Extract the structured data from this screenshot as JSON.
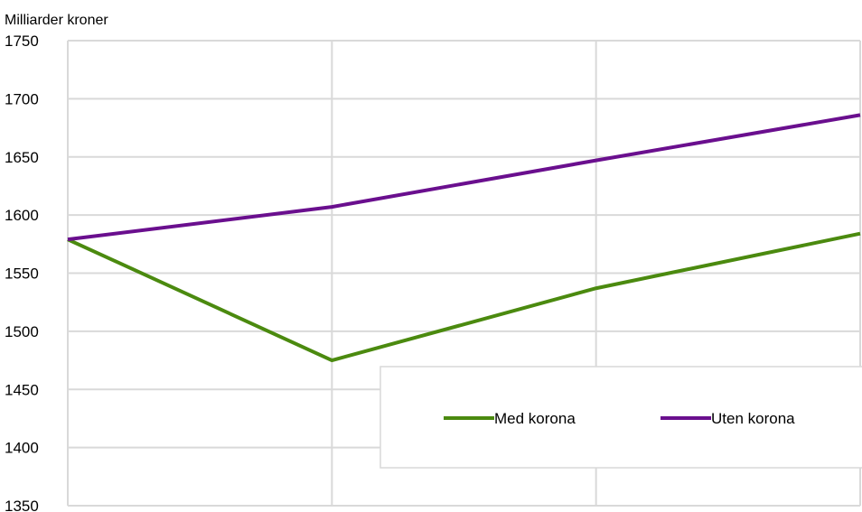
{
  "chart_data": {
    "type": "line",
    "ylabel": "Milliarder kroner",
    "ylim": [
      1350,
      1750
    ],
    "yticks": [
      1350,
      1400,
      1450,
      1500,
      1550,
      1600,
      1650,
      1700,
      1750
    ],
    "x": [
      0,
      1,
      2,
      3
    ],
    "grid": true,
    "legend_position": "lower-right",
    "series": [
      {
        "name": "Med korona",
        "color": "#4b8a0f",
        "values": [
          1579,
          1475,
          1537,
          1584
        ]
      },
      {
        "name": "Uten korona",
        "color": "#6a0f8e",
        "values": [
          1579,
          1607,
          1647,
          1686
        ]
      }
    ],
    "gridline_color": "#d9d9d9"
  }
}
